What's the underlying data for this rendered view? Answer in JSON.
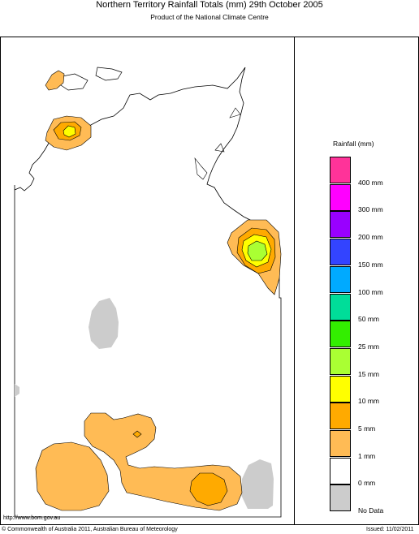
{
  "title": "Northern Territory Rainfall Totals (mm) 29th October 2005",
  "subtitle": "Product of the National Climate Centre",
  "legend": {
    "title": "Rainfall (mm)",
    "items": [
      {
        "label": "400 mm",
        "color": "#ff3399"
      },
      {
        "label": "300 mm",
        "color": "#ff00ff"
      },
      {
        "label": "200 mm",
        "color": "#9900ff"
      },
      {
        "label": "150 mm",
        "color": "#3344ff"
      },
      {
        "label": "100 mm",
        "color": "#00aaff"
      },
      {
        "label": "50 mm",
        "color": "#00dd99"
      },
      {
        "label": "25 mm",
        "color": "#33ee00"
      },
      {
        "label": "15 mm",
        "color": "#aaff33"
      },
      {
        "label": "10 mm",
        "color": "#ffff00"
      },
      {
        "label": "5 mm",
        "color": "#ffaa00"
      },
      {
        "label": "1 mm",
        "color": "#ffbb55"
      },
      {
        "label": "0 mm",
        "color": "#ffffff"
      },
      {
        "label": "No Data",
        "color": "#cccccc"
      }
    ]
  },
  "footer": {
    "url": "http://www.bom.gov.au",
    "copyright": "© Commonwealth of Australia 2011, Australian Bureau of Meteorology",
    "issued": "Issued: 11/02/2011"
  }
}
